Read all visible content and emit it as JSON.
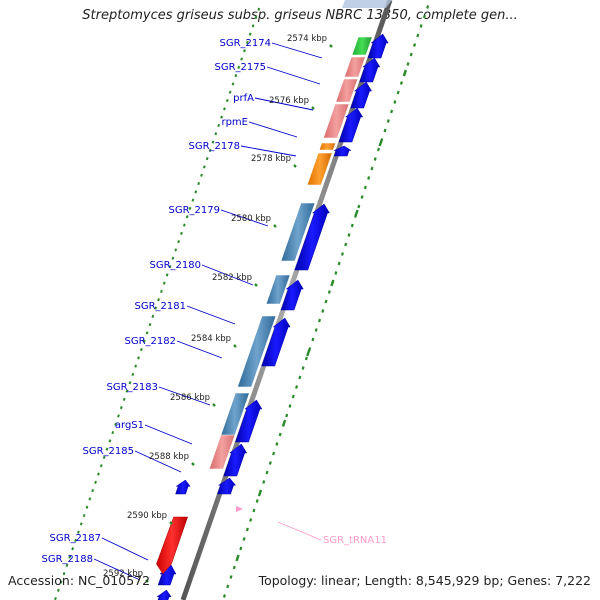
{
  "title": "Streptomyces griseus subsp. griseus NBRC 13350, complete gen...",
  "footer": {
    "accession": "Accession: NC_010572",
    "summary": "Topology: linear; Length: 8,545,929 bp; Genes: 7,222"
  },
  "axis": {
    "scale_labels": [
      "2574 kbp",
      "2576 kbp",
      "2578 kbp",
      "2580 kbp",
      "2582 kbp",
      "2584 kbp",
      "2586 kbp",
      "2588 kbp",
      "2590 kbp",
      "2592 kbp"
    ]
  },
  "genes": [
    {
      "name": "SGR_2174",
      "color": "#2ecc40"
    },
    {
      "name": "SGR_2175",
      "color": "#f08080"
    },
    {
      "name": "prfA",
      "color": "#f08080"
    },
    {
      "name": "rpmE",
      "color": "#f08080"
    },
    {
      "name": "SGR_2178",
      "color": "#ff8c00"
    },
    {
      "name": "SGR_2179",
      "color": "#ff8c00"
    },
    {
      "name": "SGR_2180",
      "color": "#4682b4"
    },
    {
      "name": "SGR_2181",
      "color": "#4682b4"
    },
    {
      "name": "SGR_2182",
      "color": "#4682b4"
    },
    {
      "name": "SGR_2183",
      "color": "#4682b4"
    },
    {
      "name": "argS1",
      "color": "#f08080"
    },
    {
      "name": "SGR_2185",
      "color": "#f08080"
    },
    {
      "name": "SGR_2187",
      "color": "#0000ee"
    },
    {
      "name": "SGR_2188",
      "color": "#0000ee"
    }
  ],
  "rna": [
    {
      "name": "SGR_tRNA11",
      "color": "#ff0000",
      "label_color": "#ff99cc"
    }
  ],
  "colors": {
    "cds_strand": "#0000ee",
    "backbone": "#888888",
    "gc_ticks": "#228b22",
    "label": "#0000cc"
  }
}
